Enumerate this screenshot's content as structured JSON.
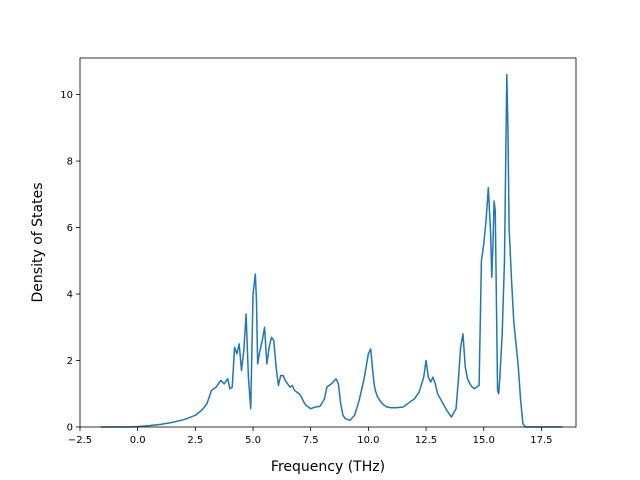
{
  "chart_data": {
    "type": "line",
    "xlabel": "Frequency (THz)",
    "ylabel": "Density of States",
    "xlim": [
      -2.5,
      19.0
    ],
    "ylim": [
      0,
      11.1
    ],
    "xticks": [
      -2.5,
      0.0,
      2.5,
      5.0,
      7.5,
      10.0,
      12.5,
      15.0,
      17.5
    ],
    "xtick_labels": [
      "−2.5",
      "0.0",
      "2.5",
      "5.0",
      "7.5",
      "10.0",
      "12.5",
      "15.0",
      "17.5"
    ],
    "yticks": [
      0,
      2,
      4,
      6,
      8,
      10
    ],
    "ytick_labels": [
      "0",
      "2",
      "4",
      "6",
      "8",
      "10"
    ],
    "grid": false,
    "series": [
      {
        "color": "#1f77b4",
        "x": [
          -1.6,
          -1.0,
          -0.5,
          0.0,
          0.5,
          1.0,
          1.5,
          2.0,
          2.5,
          2.8,
          3.0,
          3.2,
          3.4,
          3.6,
          3.75,
          3.9,
          4.0,
          4.1,
          4.2,
          4.3,
          4.4,
          4.5,
          4.6,
          4.7,
          4.8,
          4.9,
          5.0,
          5.1,
          5.15,
          5.2,
          5.3,
          5.4,
          5.5,
          5.6,
          5.7,
          5.8,
          5.9,
          6.0,
          6.1,
          6.2,
          6.3,
          6.4,
          6.5,
          6.6,
          6.7,
          6.8,
          6.9,
          7.0,
          7.1,
          7.2,
          7.3,
          7.5,
          7.7,
          7.9,
          8.1,
          8.2,
          8.4,
          8.6,
          8.7,
          8.8,
          8.9,
          9.0,
          9.2,
          9.4,
          9.6,
          9.8,
          10.0,
          10.1,
          10.2,
          10.25,
          10.3,
          10.4,
          10.5,
          10.6,
          10.8,
          11.0,
          11.2,
          11.5,
          11.8,
          12.0,
          12.2,
          12.4,
          12.5,
          12.6,
          12.7,
          12.8,
          12.9,
          13.0,
          13.2,
          13.4,
          13.6,
          13.8,
          13.9,
          14.0,
          14.1,
          14.2,
          14.3,
          14.4,
          14.5,
          14.6,
          14.8,
          14.9,
          15.0,
          15.1,
          15.2,
          15.3,
          15.35,
          15.4,
          15.45,
          15.5,
          15.6,
          15.65,
          15.7,
          15.8,
          15.9,
          16.0,
          16.05,
          16.1,
          16.2,
          16.3,
          16.4,
          16.5,
          16.6,
          16.7,
          16.8,
          16.9,
          17.0,
          17.5,
          18.4
        ],
        "y": [
          0,
          0,
          0,
          0.01,
          0.04,
          0.08,
          0.14,
          0.22,
          0.35,
          0.52,
          0.7,
          1.1,
          1.2,
          1.4,
          1.3,
          1.45,
          1.15,
          1.2,
          2.4,
          2.2,
          2.5,
          1.7,
          2.3,
          3.4,
          1.5,
          0.55,
          4.0,
          4.6,
          3.8,
          1.9,
          2.3,
          2.6,
          3.0,
          1.9,
          2.4,
          2.7,
          2.6,
          1.8,
          1.25,
          1.55,
          1.55,
          1.4,
          1.3,
          1.2,
          1.25,
          1.1,
          1.05,
          1.0,
          0.9,
          0.75,
          0.65,
          0.55,
          0.6,
          0.62,
          0.85,
          1.2,
          1.3,
          1.45,
          1.3,
          0.7,
          0.35,
          0.25,
          0.2,
          0.35,
          0.8,
          1.4,
          2.2,
          2.35,
          1.6,
          1.3,
          1.1,
          0.9,
          0.8,
          0.7,
          0.6,
          0.58,
          0.58,
          0.6,
          0.75,
          0.85,
          1.05,
          1.5,
          2.0,
          1.5,
          1.35,
          1.5,
          1.3,
          1.0,
          0.75,
          0.5,
          0.3,
          0.55,
          1.4,
          2.4,
          2.8,
          1.8,
          1.45,
          1.3,
          1.2,
          1.15,
          1.25,
          5.0,
          5.5,
          6.2,
          7.2,
          5.8,
          4.5,
          5.5,
          6.8,
          6.5,
          1.1,
          1.0,
          1.5,
          2.8,
          5.0,
          10.6,
          9.0,
          6.0,
          4.5,
          3.2,
          2.5,
          1.8,
          0.8,
          0.1,
          0,
          0,
          0,
          0,
          0
        ]
      }
    ]
  }
}
